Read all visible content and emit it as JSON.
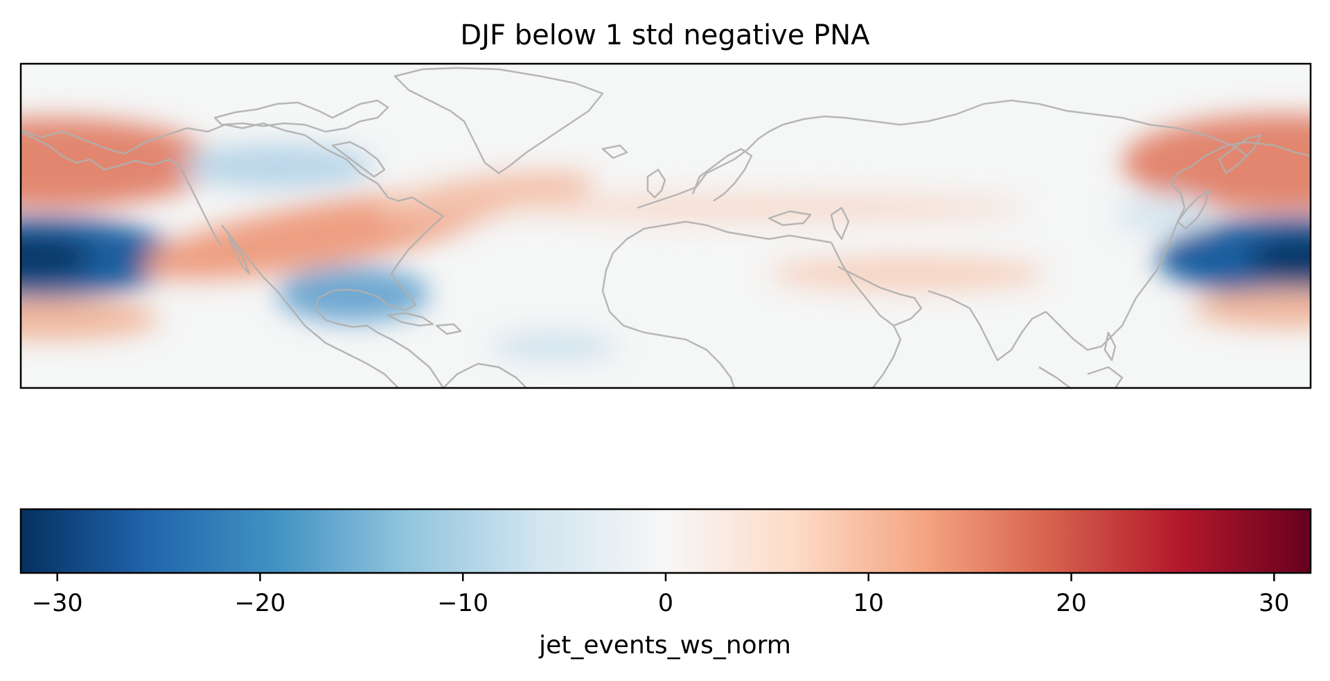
{
  "title": "DJF below 1 std negative PNA",
  "colorbar": {
    "label": "jet_events_ws_norm",
    "range": [
      -31.8,
      31.8
    ],
    "ticks": [
      {
        "value": -30,
        "label": "−30"
      },
      {
        "value": -20,
        "label": "−20"
      },
      {
        "value": -10,
        "label": "−10"
      },
      {
        "value": 0,
        "label": "0"
      },
      {
        "value": 10,
        "label": "10"
      },
      {
        "value": 20,
        "label": "20"
      },
      {
        "value": 30,
        "label": "30"
      }
    ],
    "colormap": "RdBu_r",
    "stops": [
      "#053061",
      "#2166ac",
      "#4393c3",
      "#92c5de",
      "#d1e5f0",
      "#f7f7f7",
      "#fddbc7",
      "#f4a582",
      "#d6604d",
      "#b2182b",
      "#67001f"
    ]
  },
  "map": {
    "projection": "PlateCarree",
    "coastline_color": "#aaaaaa",
    "background": "#f5f6f6"
  }
}
